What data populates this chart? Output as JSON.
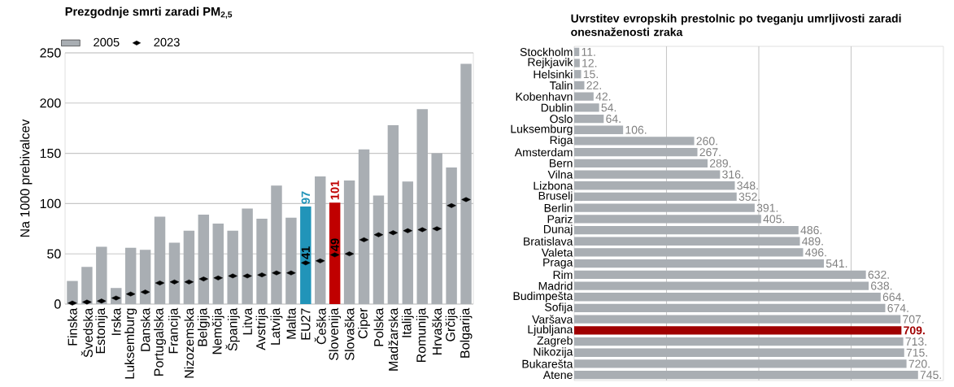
{
  "chart_data": [
    {
      "type": "bar",
      "title": "Prezgodnje smrti zaradi PM$_{2,5}$",
      "ylabel": "Na 1000 prebivalcev",
      "categories": [
        "Finska",
        "Švedska",
        "Estonija",
        "Irska",
        "Luksemburg",
        "Danska",
        "Portugalska",
        "Francija",
        "Nizozemska",
        "Belgija",
        "Nemčija",
        "Španija",
        "Litva",
        "Avstrija",
        "Latvija",
        "Malta",
        "EU27",
        "Češka",
        "Slovenija",
        "Slovaška",
        "Ciper",
        "Polska",
        "Madžarska",
        "Italija",
        "Romunija",
        "Hrvaška",
        "Grčija",
        "Bolgarija"
      ],
      "series": [
        {
          "name": "2005",
          "type": "bar",
          "color": "#a9aeb3",
          "colors": [
            "#a9aeb3",
            "#a9aeb3",
            "#a9aeb3",
            "#a9aeb3",
            "#a9aeb3",
            "#a9aeb3",
            "#a9aeb3",
            "#a9aeb3",
            "#a9aeb3",
            "#a9aeb3",
            "#a9aeb3",
            "#a9aeb3",
            "#a9aeb3",
            "#a9aeb3",
            "#a9aeb3",
            "#a9aeb3",
            "#2194b9",
            "#a9aeb3",
            "#c00000",
            "#a9aeb3",
            "#a9aeb3",
            "#a9aeb3",
            "#a9aeb3",
            "#a9aeb3",
            "#a9aeb3",
            "#a9aeb3",
            "#a9aeb3",
            "#a9aeb3"
          ],
          "values": [
            23,
            37,
            57,
            16,
            56,
            54,
            87,
            61,
            73,
            89,
            80,
            73,
            95,
            85,
            118,
            86,
            97,
            127,
            101,
            123,
            154,
            108,
            178,
            122,
            194,
            150,
            136,
            239
          ],
          "value_labels": [
            null,
            null,
            null,
            null,
            null,
            null,
            null,
            null,
            null,
            null,
            null,
            null,
            null,
            null,
            null,
            null,
            "97",
            null,
            "101",
            null,
            null,
            null,
            null,
            null,
            null,
            null,
            null,
            null
          ]
        },
        {
          "name": "2023",
          "type": "scatter",
          "marker": "diamond",
          "color": "#000000",
          "values": [
            1,
            2,
            3,
            6,
            10,
            12,
            21,
            22,
            22,
            25,
            26,
            28,
            28,
            29,
            31,
            31,
            41,
            43,
            49,
            50,
            64,
            69,
            71,
            73,
            74,
            75,
            98,
            104
          ],
          "value_labels": [
            null,
            null,
            null,
            null,
            null,
            null,
            null,
            null,
            null,
            null,
            null,
            null,
            null,
            null,
            null,
            null,
            "41",
            null,
            "49",
            null,
            null,
            null,
            null,
            null,
            null,
            null,
            null,
            null
          ]
        }
      ],
      "ylim": [
        0,
        250
      ],
      "yticks": [
        0,
        50,
        100,
        150,
        200,
        250
      ],
      "grid": "y",
      "legend": "top left"
    },
    {
      "type": "bar",
      "orientation": "horizontal",
      "title": "Uvrstitev evropskih prestolnic po tveganju umrljivosti zaradi onesnaženosti zraka",
      "categories": [
        "Stockholm",
        "Rejkjavik",
        "Helsinki",
        "Talin",
        "Kobenhavn",
        "Dublin",
        "Oslo",
        "Luksemburg",
        "Riga",
        "Amsterdam",
        "Bern",
        "Vilna",
        "Lizbona",
        "Bruselj",
        "Berlin",
        "Pariz",
        "Dunaj",
        "Bratislava",
        "Valeta",
        "Praga",
        "Rim",
        "Madrid",
        "Budimpešta",
        "Sofija",
        "Varšava",
        "Ljubljana",
        "Zagreb",
        "Nikozija",
        "Bukarešta",
        "Atene"
      ],
      "series": [
        {
          "color": "#a9aeb3",
          "colors": [
            "#a9aeb3",
            "#a9aeb3",
            "#a9aeb3",
            "#a9aeb3",
            "#a9aeb3",
            "#a9aeb3",
            "#a9aeb3",
            "#a9aeb3",
            "#a9aeb3",
            "#a9aeb3",
            "#a9aeb3",
            "#a9aeb3",
            "#a9aeb3",
            "#a9aeb3",
            "#a9aeb3",
            "#a9aeb3",
            "#a9aeb3",
            "#a9aeb3",
            "#a9aeb3",
            "#a9aeb3",
            "#a9aeb3",
            "#a9aeb3",
            "#a9aeb3",
            "#a9aeb3",
            "#a9aeb3",
            "#a00000",
            "#a9aeb3",
            "#a9aeb3",
            "#a9aeb3",
            "#a9aeb3"
          ],
          "values": [
            11,
            12,
            15,
            22,
            42,
            54,
            64,
            106,
            260,
            267,
            289,
            316,
            348,
            352,
            391,
            405,
            486,
            489,
            496,
            541,
            632,
            638,
            664,
            674,
            707,
            709,
            713,
            715,
            720,
            745
          ],
          "value_labels": [
            "11.",
            "12.",
            "15.",
            "22.",
            "42.",
            "54.",
            "64.",
            "106.",
            "260.",
            "267.",
            "289.",
            "316.",
            "348.",
            "352.",
            "391.",
            "405.",
            "486.",
            "489.",
            "496.",
            "541.",
            "632.",
            "638.",
            "664.",
            "674.",
            "707.",
            "**709.**",
            "713.",
            "715.",
            "720.",
            "745."
          ]
        }
      ],
      "xlim": [
        0,
        800
      ],
      "xticks": [
        {
          "value": 200,
          "label": null
        },
        {
          "value": 400,
          "label": null
        },
        {
          "value": 600,
          "label": null
        }
      ],
      "grid": "x",
      "tick_labels": "y"
    }
  ]
}
